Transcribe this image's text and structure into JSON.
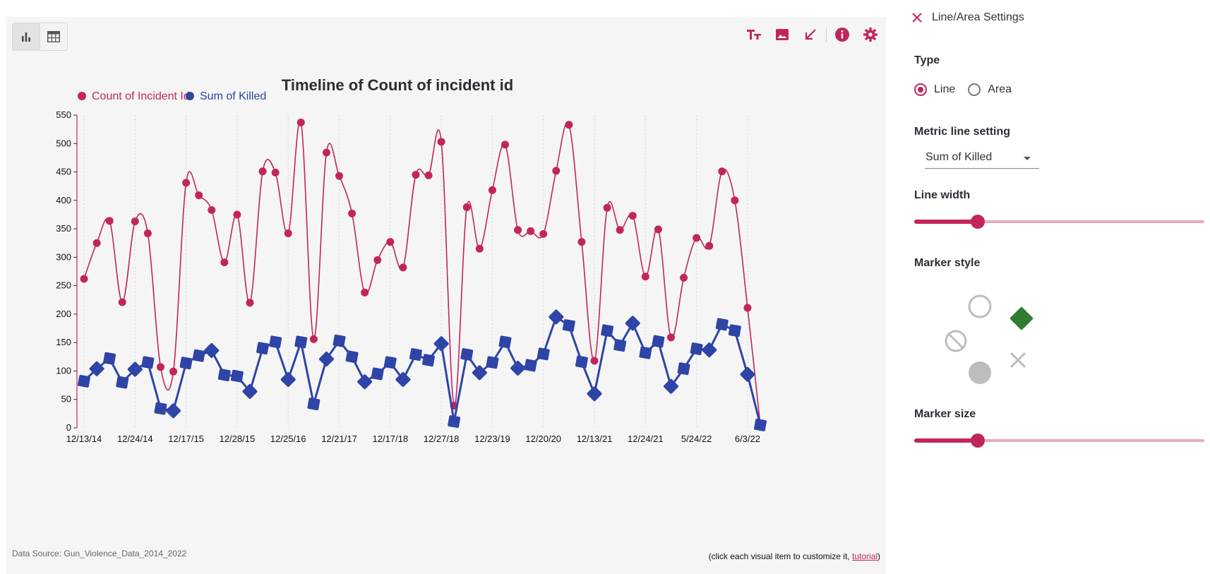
{
  "chart_panel": {
    "view_toggle": [
      "chart-view",
      "table-view"
    ],
    "toolbar_icons": [
      "text-size-icon",
      "image-icon",
      "collapse-arrow-icon",
      "info-icon",
      "gear-icon"
    ],
    "data_source": "Data Source: Gun_Violence_Data_2014_2022",
    "hint_prefix": "(click each visual item to customize it, ",
    "hint_link": "tutorial",
    "hint_suffix": ")"
  },
  "colors": {
    "accent": "#c2255c",
    "series_count": "#c2255c",
    "series_killed": "#2e44a6",
    "panel_bg": "#f5f5f5",
    "marker_selected": "#2e7d32",
    "marker_idle": "#bdbdbd"
  },
  "chart_data": {
    "type": "line",
    "title": "Timeline of Count of incident id",
    "xlabel": "",
    "ylabel": "",
    "ylim": [
      0,
      550
    ],
    "yticks": [
      0,
      50,
      100,
      150,
      200,
      250,
      300,
      350,
      400,
      450,
      500,
      550
    ],
    "legend_position": "top-left",
    "x_tick_labels": [
      "12/13/14",
      "12/24/14",
      "12/17/15",
      "12/28/15",
      "12/25/16",
      "12/21/17",
      "12/17/18",
      "12/27/18",
      "12/23/19",
      "12/20/20",
      "12/13/21",
      "12/24/21",
      "5/24/22",
      "6/3/22"
    ],
    "series": [
      {
        "name": "Count of Incident Id",
        "marker": "circle",
        "values": [
          262,
          325,
          364,
          221,
          363,
          342,
          107,
          99,
          431,
          409,
          383,
          291,
          375,
          220,
          451,
          449,
          342,
          537,
          156,
          484,
          443,
          377,
          238,
          295,
          327,
          282,
          445,
          444,
          503,
          39,
          388,
          315,
          418,
          498,
          348,
          346,
          341,
          452,
          533,
          327,
          118,
          387,
          348,
          373,
          266,
          349,
          159,
          264,
          334,
          320,
          451,
          400,
          211,
          5
        ]
      },
      {
        "name": "Sum of Killed",
        "marker": "diamond",
        "values": [
          82,
          104,
          122,
          80,
          103,
          115,
          34,
          30,
          114,
          127,
          136,
          93,
          91,
          64,
          140,
          151,
          85,
          151,
          42,
          121,
          153,
          125,
          81,
          95,
          115,
          85,
          129,
          119,
          148,
          11,
          129,
          97,
          115,
          151,
          105,
          110,
          130,
          195,
          180,
          116,
          60,
          171,
          145,
          184,
          132,
          152,
          73,
          104,
          139,
          137,
          182,
          171,
          94,
          5
        ]
      }
    ]
  },
  "settings": {
    "title": "Line/Area Settings",
    "type_label": "Type",
    "type_options": [
      "Line",
      "Area"
    ],
    "type_selected": "Line",
    "metric_label": "Metric line setting",
    "metric_value": "Sum of Killed",
    "line_width_label": "Line width",
    "line_width_value": 0.22,
    "marker_style_label": "Marker style",
    "marker_styles": [
      "none",
      "circle-outline",
      "diamond",
      "circle-filled",
      "cross"
    ],
    "marker_selected": "diamond",
    "marker_size_label": "Marker size",
    "marker_size_value": 0.22
  }
}
